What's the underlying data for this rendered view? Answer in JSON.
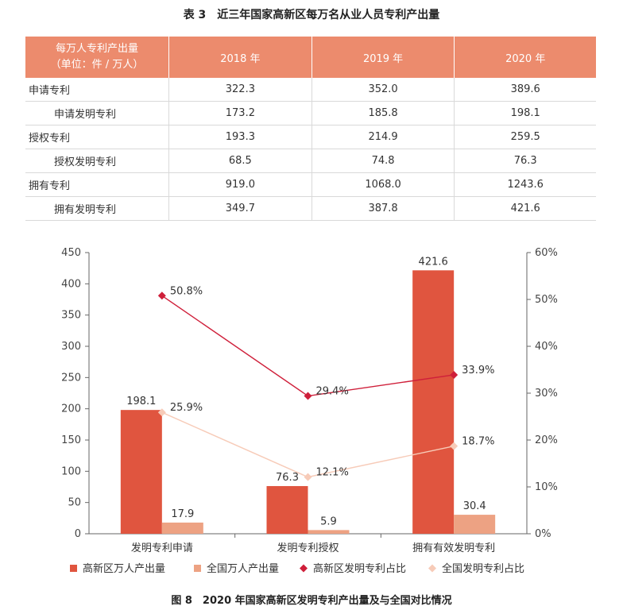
{
  "table": {
    "title": "表 3　近三年国家高新区每万名从业人员专利产出量",
    "corner_line1": "每万人专利产出量",
    "corner_line2": "（单位：件 / 万人）",
    "columns": [
      "2018 年",
      "2019 年",
      "2020 年"
    ],
    "rows": [
      {
        "label": "申请专利",
        "sub": false,
        "values": [
          "322.3",
          "352.0",
          "389.6"
        ]
      },
      {
        "label": "申请发明专利",
        "sub": true,
        "values": [
          "173.2",
          "185.8",
          "198.1"
        ]
      },
      {
        "label": "授权专利",
        "sub": false,
        "values": [
          "193.3",
          "214.9",
          "259.5"
        ]
      },
      {
        "label": "授权发明专利",
        "sub": true,
        "values": [
          "68.5",
          "74.8",
          "76.3"
        ]
      },
      {
        "label": "拥有专利",
        "sub": false,
        "values": [
          "919.0",
          "1068.0",
          "1243.6"
        ]
      },
      {
        "label": "拥有发明专利",
        "sub": true,
        "values": [
          "349.7",
          "387.8",
          "421.6"
        ]
      }
    ]
  },
  "chart_data": {
    "type": "bar",
    "title": "图 8　2020 年国家高新区发明专利产出量及与全国对比情况",
    "categories": [
      "发明专利申请",
      "发明专利授权",
      "拥有有效发明专利"
    ],
    "bar_series": [
      {
        "name": "高新区万人产出量",
        "values": [
          198.1,
          76.3,
          421.6
        ],
        "labels": [
          "198.1",
          "76.3",
          "421.6"
        ],
        "color": "#e0553f"
      },
      {
        "name": "全国万人产出量",
        "values": [
          17.9,
          5.9,
          30.4
        ],
        "labels": [
          "17.9",
          "5.9",
          "30.4"
        ],
        "color": "#eda283"
      }
    ],
    "line_series": [
      {
        "name": "高新区发明专利占比",
        "values": [
          50.8,
          29.4,
          33.9
        ],
        "labels": [
          "50.8%",
          "29.4%",
          "33.9%"
        ],
        "color": "#cf1f3a",
        "marker": "diamond"
      },
      {
        "name": "全国发明专利占比",
        "values": [
          25.9,
          12.1,
          18.7
        ],
        "labels": [
          "25.9%",
          "12.1%",
          "18.7%"
        ],
        "color": "#f7cbb8",
        "marker": "diamond"
      }
    ],
    "y_left": {
      "min": 0,
      "max": 450,
      "step": 50,
      "ticks": [
        "0",
        "50",
        "100",
        "150",
        "200",
        "250",
        "300",
        "350",
        "400",
        "450"
      ]
    },
    "y_right": {
      "min": 0,
      "max": 60,
      "step": 10,
      "ticks": [
        "0%",
        "10%",
        "20%",
        "30%",
        "40%",
        "50%",
        "60%"
      ]
    },
    "legend_position": "bottom"
  }
}
